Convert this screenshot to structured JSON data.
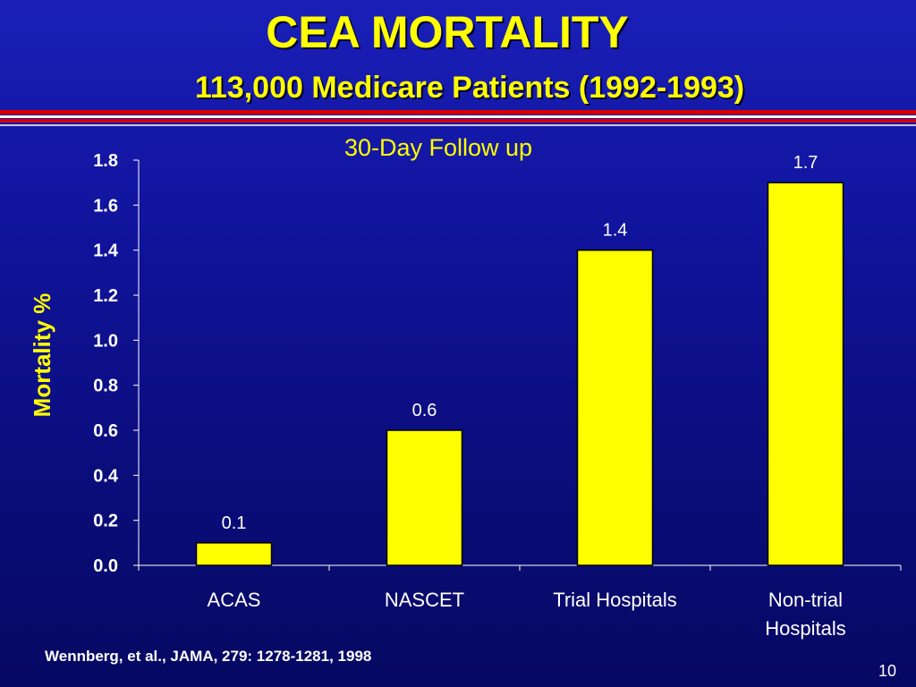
{
  "slide": {
    "title": "CEA MORTALITY",
    "subtitle": "113,000 Medicare Patients (1992-1993)",
    "citation": "Wennberg, et al., JAMA, 279: 1278-1281, 1998",
    "page_number": "10",
    "colors": {
      "background": "#10139a",
      "accent": "#ffff00",
      "rule_red": "#d40000",
      "rule_white": "#ffffff"
    }
  },
  "chart_data": {
    "type": "bar",
    "title": "30-Day Follow up",
    "xlabel": "",
    "ylabel": "Mortality %",
    "categories": [
      [
        "ACAS"
      ],
      [
        "NASCET"
      ],
      [
        "Trial Hospitals"
      ],
      [
        "Non-trial",
        "Hospitals"
      ]
    ],
    "values": [
      0.1,
      0.6,
      1.4,
      1.7
    ],
    "data_labels": [
      "0.1",
      "0.6",
      "1.4",
      "1.7"
    ],
    "ylim": [
      0,
      1.8
    ],
    "yticks": [
      "0.0",
      "0.2",
      "0.4",
      "0.6",
      "0.8",
      "1.0",
      "1.2",
      "1.4",
      "1.6",
      "1.8"
    ],
    "grid": false,
    "legend": "none",
    "bar_color": "#ffff00"
  }
}
